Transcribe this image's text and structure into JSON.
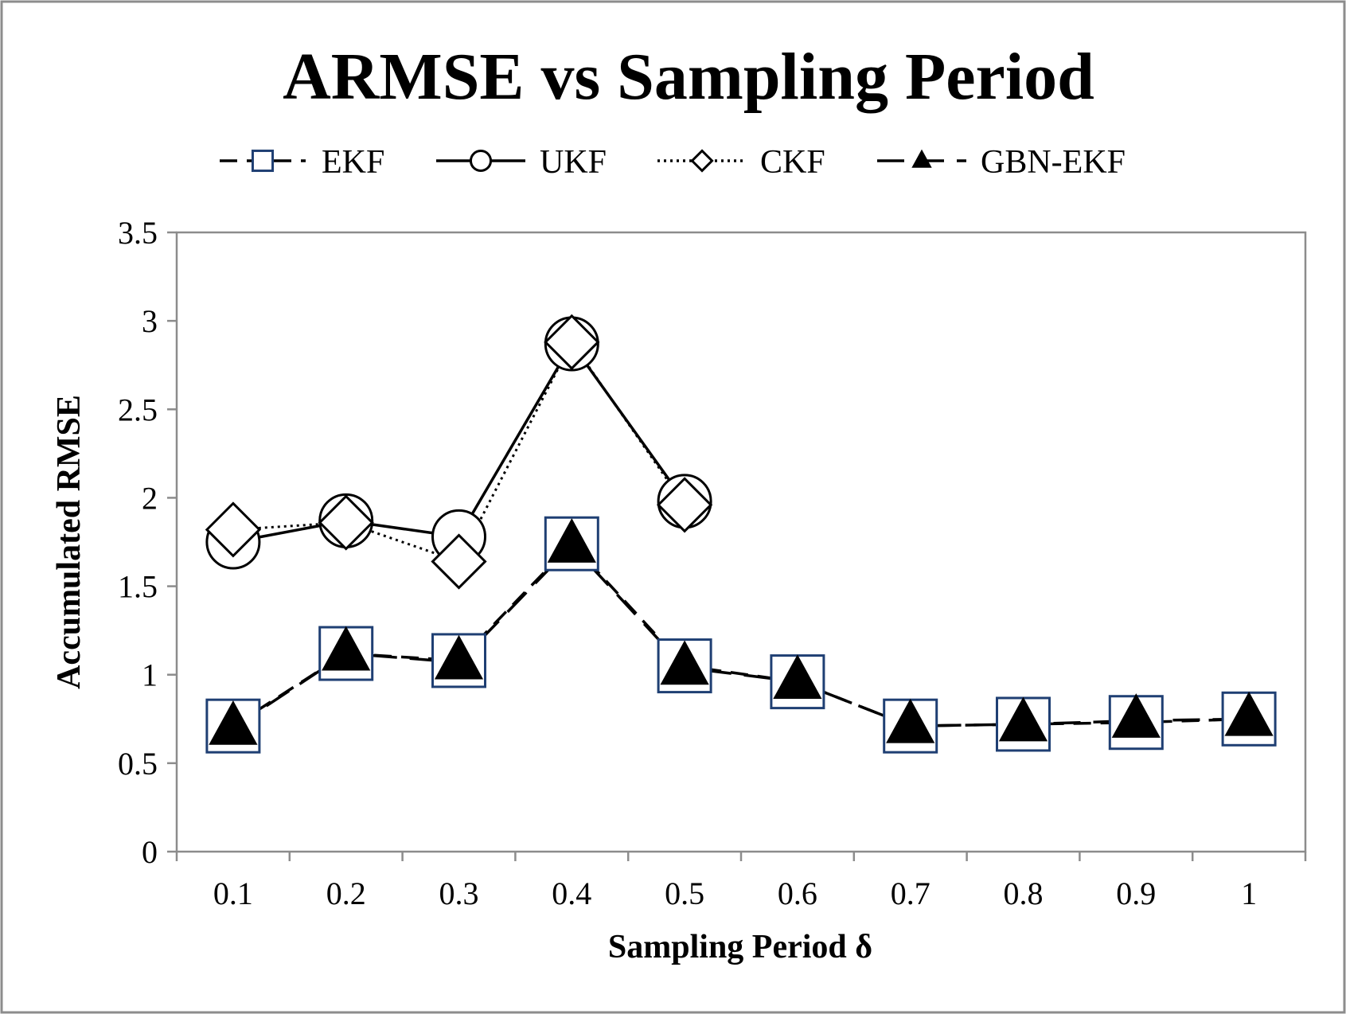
{
  "chart_data": {
    "type": "line",
    "title": "ARMSE vs Sampling Period",
    "xlabel": "Sampling Period δ",
    "ylabel": "Accumulated RMSE",
    "ylim": [
      0,
      3.5
    ],
    "yticks": [
      0,
      0.5,
      1,
      1.5,
      2,
      2.5,
      3,
      3.5
    ],
    "ytick_labels": [
      "0",
      "0.5",
      "1",
      "1.5",
      "2",
      "2.5",
      "3",
      "3.5"
    ],
    "categories": [
      "0.1",
      "0.2",
      "0.3",
      "0.4",
      "0.5",
      "0.6",
      "0.7",
      "0.8",
      "0.9",
      "1"
    ],
    "grid": false,
    "legend_position": "top",
    "series": [
      {
        "name": "EKF",
        "marker": "square",
        "line": "dashed",
        "color": "#1f3f73",
        "values": [
          0.71,
          1.12,
          1.08,
          1.74,
          1.05,
          0.96,
          0.71,
          0.72,
          0.73,
          0.75
        ]
      },
      {
        "name": "UKF",
        "marker": "circle",
        "line": "solid",
        "color": "#000000",
        "values": [
          1.75,
          1.87,
          1.78,
          2.87,
          1.98,
          null,
          null,
          null,
          null,
          null
        ]
      },
      {
        "name": "CKF",
        "marker": "diamond",
        "line": "dotted",
        "color": "#000000",
        "values": [
          1.82,
          1.86,
          1.64,
          2.88,
          1.96,
          null,
          null,
          null,
          null,
          null
        ]
      },
      {
        "name": "GBN-EKF",
        "marker": "triangle",
        "line": "longdash",
        "color": "#000000",
        "values": [
          0.7,
          1.12,
          1.07,
          1.73,
          1.04,
          0.96,
          0.71,
          0.72,
          0.74,
          0.75
        ]
      }
    ]
  }
}
